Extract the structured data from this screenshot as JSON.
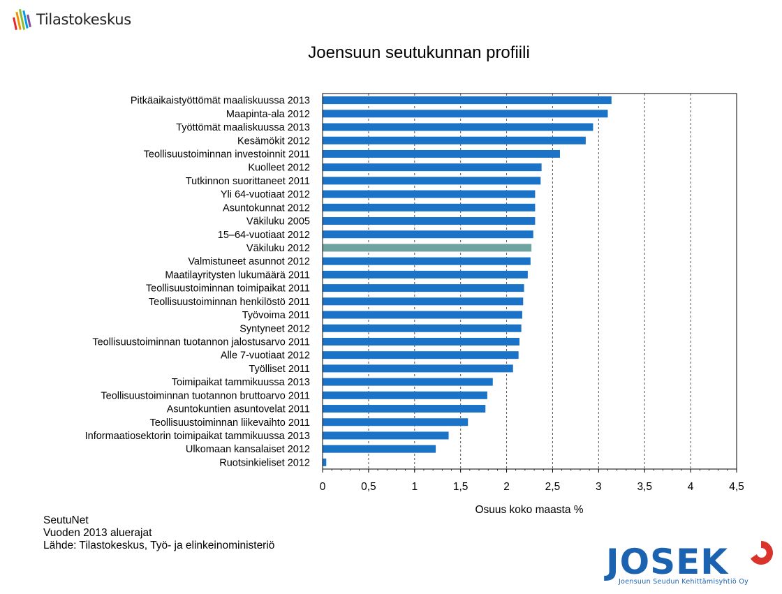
{
  "header": {
    "logo_text": "Tilastokeskus",
    "title": "Joensuun seutukunnan profiili"
  },
  "chart_data": {
    "type": "bar",
    "orientation": "horizontal",
    "xlabel": "Osuus koko maasta %",
    "xlim": [
      0,
      4.5
    ],
    "xticks": [
      "0",
      "0,5",
      "1",
      "1,5",
      "2",
      "2,5",
      "3",
      "3,5",
      "4",
      "4,5"
    ],
    "xtick_values": [
      0,
      0.5,
      1,
      1.5,
      2,
      2.5,
      3,
      3.5,
      4,
      4.5
    ],
    "grid": "vertical dashed",
    "bar_color": "#1a73c6",
    "highlight_color": "#6fa3a0",
    "highlight_category": "Väkiluku 2012",
    "categories": [
      "Pitkäaikaistyöttömät maaliskuussa 2013",
      "Maapinta-ala 2012",
      "Työttömät maaliskuussa 2013",
      "Kesämökit 2012",
      "Teollisuustoiminnan investoinnit 2011",
      "Kuolleet 2012",
      "Tutkinnon suorittaneet 2011",
      "Yli 64-vuotiaat 2012",
      "Asuntokunnat 2012",
      "Väkiluku 2005",
      "15–64-vuotiaat 2012",
      "Väkiluku 2012",
      "Valmistuneet asunnot 2012",
      "Maatilayritysten lukumäärä 2011",
      "Teollisuustoiminnan toimipaikat 2011",
      "Teollisuustoiminnan henkilöstö 2011",
      "Työvoima 2011",
      "Syntyneet 2012",
      "Teollisuustoiminnan tuotannon jalostusarvo 2011",
      "Alle 7-vuotiaat 2012",
      "Työlliset 2011",
      "Toimipaikat tammikuussa 2013",
      "Teollisuustoiminnan tuotannon bruttoarvo 2011",
      "Asuntokuntien asuntovelat 2011",
      "Teollisuustoiminnan liikevaihto 2011",
      "Informaatiosektorin toimipaikat tammikuussa 2013",
      "Ulkomaan kansalaiset 2012",
      "Ruotsinkieliset 2012"
    ],
    "values": [
      3.14,
      3.1,
      2.94,
      2.86,
      2.58,
      2.38,
      2.37,
      2.31,
      2.31,
      2.31,
      2.29,
      2.27,
      2.26,
      2.23,
      2.19,
      2.18,
      2.17,
      2.16,
      2.14,
      2.13,
      2.07,
      1.85,
      1.79,
      1.77,
      1.58,
      1.37,
      1.23,
      0.04
    ]
  },
  "footer": {
    "line1": "SeutuNet",
    "line2": "Vuoden 2013 aluerajat",
    "line3": "Lähde: Tilastokeskus, Työ- ja elinkeinoministeriö"
  },
  "josek": {
    "word": "JOSEK",
    "subtitle": "Joensuun Seudun Kehittämisyhtiö Oy",
    "color": "#1b63b0",
    "swoosh_color": "#d9332b"
  }
}
